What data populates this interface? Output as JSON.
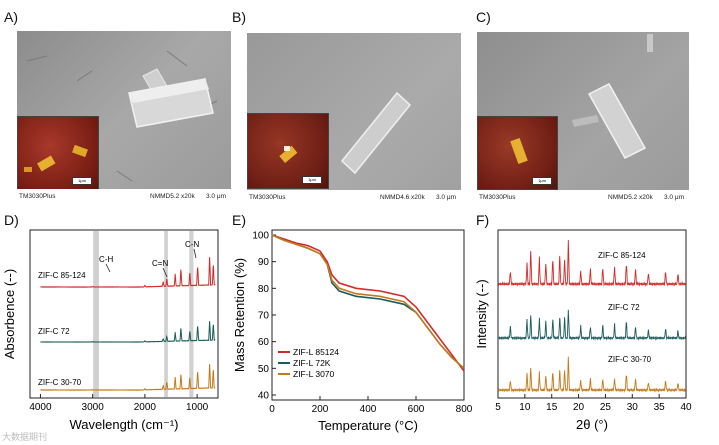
{
  "panel_labels": {
    "a": "A)",
    "b": "B)",
    "c": "C)",
    "d": "D)",
    "e": "E)",
    "f": "F)"
  },
  "sem_images": [
    {
      "instrument": "TM3030Plus",
      "info": "NMMD5.2  x20k",
      "scale": "3.0 μm",
      "inset_scale": "1μm"
    },
    {
      "instrument": "TM3030Plus",
      "info": "NMMD4.6  x20k",
      "scale": "3.0 μm",
      "inset_scale": "1μm"
    },
    {
      "instrument": "TM3030Plus",
      "info": "NMMD5.2  x20k",
      "scale": "3.0 μm",
      "inset_scale": "1μm"
    }
  ],
  "watermark": "大数据期刊",
  "colors": {
    "red": "#d42a2a",
    "teal": "#1c5c5c",
    "orange": "#c47a1c"
  },
  "chart_data": [
    {
      "type": "line",
      "panel": "D",
      "xlabel": "Wavelength (cm⁻¹)",
      "ylabel": "Absorbence (--)",
      "x_ticks": [
        "4000",
        "3000",
        "2000",
        "1000"
      ],
      "xlim": [
        4200,
        600
      ],
      "annotations": [
        "C-H",
        "C=N",
        "C-N"
      ],
      "series": [
        {
          "name": "ZIF-C 85-124",
          "values": [
            [
              4000,
              0
            ],
            [
              3000,
              0.01
            ],
            [
              2000,
              0.04
            ],
            [
              1650,
              0.12
            ],
            [
              1580,
              0.2
            ],
            [
              1420,
              0.3
            ],
            [
              1310,
              0.45
            ],
            [
              1140,
              0.35
            ],
            [
              990,
              0.5
            ],
            [
              760,
              0.7
            ],
            [
              690,
              0.55
            ]
          ]
        },
        {
          "name": "ZIF-C 72",
          "values": [
            [
              4000,
              0
            ],
            [
              3000,
              0.01
            ],
            [
              2000,
              0.03
            ],
            [
              1650,
              0.08
            ],
            [
              1580,
              0.15
            ],
            [
              1420,
              0.25
            ],
            [
              1310,
              0.4
            ],
            [
              1140,
              0.3
            ],
            [
              990,
              0.45
            ],
            [
              760,
              0.55
            ],
            [
              690,
              0.5
            ]
          ]
        },
        {
          "name": "ZIF-C 30-70",
          "values": [
            [
              4000,
              0
            ],
            [
              3000,
              0.01
            ],
            [
              2000,
              0.03
            ],
            [
              1650,
              0.1
            ],
            [
              1580,
              0.2
            ],
            [
              1420,
              0.3
            ],
            [
              1310,
              0.4
            ],
            [
              1140,
              0.3
            ],
            [
              990,
              0.45
            ],
            [
              760,
              0.6
            ],
            [
              690,
              0.5
            ]
          ]
        }
      ]
    },
    {
      "type": "line",
      "panel": "E",
      "xlabel": "Temperature (°C)",
      "ylabel": "Mass Retention (%)",
      "xlim": [
        0,
        800
      ],
      "ylim": [
        40,
        100
      ],
      "x_ticks": [
        0,
        200,
        400,
        600,
        800
      ],
      "y_ticks": [
        40,
        50,
        60,
        70,
        80,
        90,
        100
      ],
      "series": [
        {
          "name": "ZIF-L 85124",
          "x": [
            0,
            50,
            100,
            150,
            200,
            230,
            250,
            280,
            350,
            450,
            550,
            600,
            650,
            700,
            750,
            800
          ],
          "y": [
            100,
            98.5,
            97,
            96,
            94,
            90,
            85,
            82,
            80,
            79,
            77,
            73,
            67,
            61,
            55,
            49
          ]
        },
        {
          "name": "ZIF-L 72K",
          "x": [
            0,
            50,
            100,
            150,
            200,
            230,
            250,
            280,
            350,
            450,
            550,
            600,
            650,
            700,
            750,
            800
          ],
          "y": [
            100,
            98,
            96.5,
            95,
            93,
            89,
            82,
            79,
            77,
            76,
            74,
            71,
            65,
            59,
            54,
            50
          ]
        },
        {
          "name": "ZIF-L 3070",
          "x": [
            0,
            50,
            100,
            150,
            200,
            230,
            250,
            280,
            350,
            450,
            550,
            600,
            650,
            700,
            750,
            800
          ],
          "y": [
            100,
            98,
            96.5,
            95,
            93,
            89,
            83,
            80,
            78,
            77,
            75,
            71,
            65,
            59,
            54,
            50
          ]
        }
      ]
    },
    {
      "type": "line",
      "panel": "F",
      "xlabel": "2θ (°)",
      "ylabel": "Intensity (--)",
      "xlim": [
        5,
        40
      ],
      "x_ticks": [
        5,
        10,
        15,
        20,
        25,
        30,
        35,
        40
      ],
      "series": [
        {
          "name": "ZIF-C 85-124",
          "peaks": [
            [
              7.3,
              0.3
            ],
            [
              10.4,
              0.5
            ],
            [
              11.1,
              0.8
            ],
            [
              12.7,
              0.6
            ],
            [
              13.9,
              0.5
            ],
            [
              15.2,
              0.6
            ],
            [
              16.5,
              0.7
            ],
            [
              17.4,
              0.6
            ],
            [
              18.1,
              1.0
            ],
            [
              20.4,
              0.3
            ],
            [
              22.2,
              0.35
            ],
            [
              24.5,
              0.4
            ],
            [
              26.7,
              0.4
            ],
            [
              28.9,
              0.5
            ],
            [
              30.6,
              0.35
            ],
            [
              33,
              0.25
            ],
            [
              36.2,
              0.3
            ],
            [
              38.5,
              0.25
            ]
          ]
        },
        {
          "name": "ZIF-C 72",
          "peaks": [
            [
              7.3,
              0.3
            ],
            [
              10.4,
              0.5
            ],
            [
              11.1,
              0.6
            ],
            [
              12.7,
              0.5
            ],
            [
              13.9,
              0.45
            ],
            [
              15.2,
              0.5
            ],
            [
              16.5,
              0.6
            ],
            [
              17.4,
              0.55
            ],
            [
              18.1,
              0.75
            ],
            [
              20.4,
              0.3
            ],
            [
              22.2,
              0.3
            ],
            [
              24.5,
              0.35
            ],
            [
              26.7,
              0.35
            ],
            [
              28.9,
              0.45
            ],
            [
              30.6,
              0.3
            ],
            [
              33,
              0.2
            ],
            [
              36.2,
              0.25
            ],
            [
              38.5,
              0.2
            ]
          ]
        },
        {
          "name": "ZIF-C 30-70",
          "peaks": [
            [
              7.3,
              0.25
            ],
            [
              10.4,
              0.45
            ],
            [
              11.1,
              0.6
            ],
            [
              12.7,
              0.45
            ],
            [
              13.9,
              0.4
            ],
            [
              15.2,
              0.5
            ],
            [
              16.5,
              0.55
            ],
            [
              17.4,
              0.55
            ],
            [
              18.1,
              0.85
            ],
            [
              20.4,
              0.25
            ],
            [
              22.2,
              0.3
            ],
            [
              24.5,
              0.3
            ],
            [
              26.7,
              0.3
            ],
            [
              28.9,
              0.45
            ],
            [
              30.6,
              0.3
            ],
            [
              33,
              0.2
            ],
            [
              36.2,
              0.25
            ],
            [
              38.5,
              0.2
            ]
          ]
        }
      ]
    }
  ]
}
